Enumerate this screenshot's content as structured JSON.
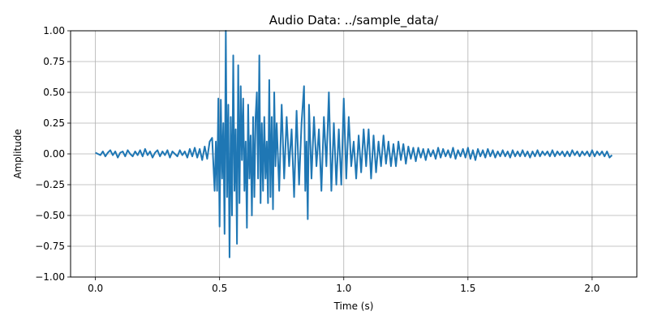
{
  "chart_data": {
    "type": "line",
    "title": "Audio Data: ../sample_data/",
    "xlabel": "Time (s)",
    "ylabel": "Amplitude",
    "xlim": [
      -0.1,
      2.18
    ],
    "ylim": [
      -1.0,
      1.0
    ],
    "xticks": [
      0.0,
      0.5,
      1.0,
      1.5,
      2.0
    ],
    "xtick_labels": [
      "0.0",
      "0.5",
      "1.0",
      "1.5",
      "2.0"
    ],
    "yticks": [
      -1.0,
      -0.75,
      -0.5,
      -0.25,
      0.0,
      0.25,
      0.5,
      0.75,
      1.0
    ],
    "ytick_labels": [
      "−1.00",
      "−0.75",
      "−0.50",
      "−0.25",
      "0.00",
      "0.25",
      "0.50",
      "0.75",
      "1.00"
    ],
    "grid": true,
    "series": [
      {
        "color": "#1f77b4",
        "points": [
          [
            0.0,
            0.01
          ],
          [
            0.01,
            0.0
          ],
          [
            0.02,
            -0.01
          ],
          [
            0.03,
            0.02
          ],
          [
            0.04,
            -0.02
          ],
          [
            0.05,
            0.01
          ],
          [
            0.06,
            0.03
          ],
          [
            0.07,
            -0.01
          ],
          [
            0.08,
            0.02
          ],
          [
            0.09,
            -0.03
          ],
          [
            0.1,
            0.01
          ],
          [
            0.11,
            0.02
          ],
          [
            0.12,
            -0.02
          ],
          [
            0.13,
            0.03
          ],
          [
            0.14,
            0.0
          ],
          [
            0.15,
            -0.02
          ],
          [
            0.16,
            0.02
          ],
          [
            0.17,
            -0.01
          ],
          [
            0.18,
            0.03
          ],
          [
            0.19,
            -0.02
          ],
          [
            0.2,
            0.04
          ],
          [
            0.21,
            -0.01
          ],
          [
            0.22,
            0.02
          ],
          [
            0.23,
            -0.03
          ],
          [
            0.24,
            0.01
          ],
          [
            0.25,
            0.03
          ],
          [
            0.26,
            -0.02
          ],
          [
            0.27,
            0.02
          ],
          [
            0.28,
            -0.01
          ],
          [
            0.29,
            0.03
          ],
          [
            0.3,
            -0.03
          ],
          [
            0.31,
            0.02
          ],
          [
            0.32,
            0.0
          ],
          [
            0.33,
            -0.02
          ],
          [
            0.34,
            0.03
          ],
          [
            0.35,
            -0.01
          ],
          [
            0.36,
            0.02
          ],
          [
            0.37,
            -0.03
          ],
          [
            0.38,
            0.04
          ],
          [
            0.39,
            -0.02
          ],
          [
            0.4,
            0.05
          ],
          [
            0.41,
            -0.03
          ],
          [
            0.42,
            0.04
          ],
          [
            0.43,
            -0.05
          ],
          [
            0.44,
            0.06
          ],
          [
            0.45,
            -0.04
          ],
          [
            0.46,
            0.1
          ],
          [
            0.47,
            0.13
          ],
          [
            0.48,
            -0.3
          ],
          [
            0.485,
            0.1
          ],
          [
            0.49,
            -0.3
          ],
          [
            0.495,
            0.45
          ],
          [
            0.5,
            -0.59
          ],
          [
            0.505,
            0.44
          ],
          [
            0.51,
            -0.2
          ],
          [
            0.515,
            0.25
          ],
          [
            0.52,
            -0.65
          ],
          [
            0.525,
            1.0
          ],
          [
            0.53,
            -0.35
          ],
          [
            0.535,
            0.4
          ],
          [
            0.54,
            -0.84
          ],
          [
            0.545,
            0.3
          ],
          [
            0.55,
            -0.5
          ],
          [
            0.555,
            0.8
          ],
          [
            0.56,
            -0.3
          ],
          [
            0.565,
            0.2
          ],
          [
            0.57,
            -0.73
          ],
          [
            0.575,
            0.72
          ],
          [
            0.58,
            -0.4
          ],
          [
            0.585,
            0.55
          ],
          [
            0.59,
            -0.05
          ],
          [
            0.595,
            0.45
          ],
          [
            0.6,
            -0.3
          ],
          [
            0.605,
            0.1
          ],
          [
            0.61,
            -0.6
          ],
          [
            0.615,
            0.4
          ],
          [
            0.62,
            -0.2
          ],
          [
            0.625,
            0.15
          ],
          [
            0.63,
            -0.5
          ],
          [
            0.635,
            0.3
          ],
          [
            0.64,
            -0.35
          ],
          [
            0.645,
            0.3
          ],
          [
            0.65,
            0.5
          ],
          [
            0.655,
            -0.2
          ],
          [
            0.66,
            0.8
          ],
          [
            0.665,
            -0.4
          ],
          [
            0.67,
            0.25
          ],
          [
            0.675,
            -0.3
          ],
          [
            0.68,
            0.3
          ],
          [
            0.685,
            -0.2
          ],
          [
            0.69,
            0.1
          ],
          [
            0.695,
            -0.4
          ],
          [
            0.7,
            0.6
          ],
          [
            0.705,
            -0.35
          ],
          [
            0.71,
            0.3
          ],
          [
            0.715,
            -0.45
          ],
          [
            0.72,
            0.5
          ],
          [
            0.725,
            -0.1
          ],
          [
            0.73,
            0.25
          ],
          [
            0.74,
            -0.3
          ],
          [
            0.75,
            0.4
          ],
          [
            0.76,
            -0.2
          ],
          [
            0.77,
            0.3
          ],
          [
            0.78,
            -0.1
          ],
          [
            0.79,
            0.2
          ],
          [
            0.8,
            -0.35
          ],
          [
            0.81,
            0.35
          ],
          [
            0.82,
            -0.25
          ],
          [
            0.83,
            0.25
          ],
          [
            0.84,
            0.55
          ],
          [
            0.845,
            -0.3
          ],
          [
            0.85,
            0.1
          ],
          [
            0.855,
            -0.53
          ],
          [
            0.86,
            0.4
          ],
          [
            0.87,
            -0.2
          ],
          [
            0.88,
            0.3
          ],
          [
            0.89,
            -0.1
          ],
          [
            0.9,
            0.2
          ],
          [
            0.91,
            -0.3
          ],
          [
            0.92,
            0.3
          ],
          [
            0.93,
            -0.1
          ],
          [
            0.94,
            0.5
          ],
          [
            0.95,
            -0.3
          ],
          [
            0.96,
            0.25
          ],
          [
            0.97,
            -0.25
          ],
          [
            0.98,
            0.2
          ],
          [
            0.99,
            -0.25
          ],
          [
            1.0,
            0.45
          ],
          [
            1.01,
            -0.2
          ],
          [
            1.02,
            0.3
          ],
          [
            1.03,
            -0.1
          ],
          [
            1.04,
            0.1
          ],
          [
            1.05,
            -0.2
          ],
          [
            1.06,
            0.15
          ],
          [
            1.07,
            -0.15
          ],
          [
            1.08,
            0.2
          ],
          [
            1.09,
            -0.1
          ],
          [
            1.1,
            0.2
          ],
          [
            1.11,
            -0.2
          ],
          [
            1.12,
            0.15
          ],
          [
            1.13,
            -0.15
          ],
          [
            1.14,
            0.1
          ],
          [
            1.15,
            -0.1
          ],
          [
            1.16,
            0.15
          ],
          [
            1.17,
            -0.08
          ],
          [
            1.18,
            0.1
          ],
          [
            1.19,
            -0.1
          ],
          [
            1.2,
            0.08
          ],
          [
            1.21,
            -0.1
          ],
          [
            1.22,
            0.1
          ],
          [
            1.23,
            -0.05
          ],
          [
            1.24,
            0.08
          ],
          [
            1.25,
            -0.08
          ],
          [
            1.26,
            0.06
          ],
          [
            1.27,
            -0.04
          ],
          [
            1.28,
            0.05
          ],
          [
            1.29,
            -0.06
          ],
          [
            1.3,
            0.05
          ],
          [
            1.31,
            -0.03
          ],
          [
            1.32,
            0.04
          ],
          [
            1.33,
            -0.05
          ],
          [
            1.34,
            0.04
          ],
          [
            1.35,
            -0.02
          ],
          [
            1.36,
            0.03
          ],
          [
            1.37,
            -0.04
          ],
          [
            1.38,
            0.05
          ],
          [
            1.39,
            -0.03
          ],
          [
            1.4,
            0.04
          ],
          [
            1.41,
            -0.02
          ],
          [
            1.42,
            0.03
          ],
          [
            1.43,
            -0.03
          ],
          [
            1.44,
            0.05
          ],
          [
            1.45,
            -0.04
          ],
          [
            1.46,
            0.03
          ],
          [
            1.47,
            -0.02
          ],
          [
            1.48,
            0.04
          ],
          [
            1.49,
            -0.03
          ],
          [
            1.5,
            0.05
          ],
          [
            1.51,
            -0.04
          ],
          [
            1.52,
            0.03
          ],
          [
            1.53,
            -0.05
          ],
          [
            1.54,
            0.04
          ],
          [
            1.55,
            -0.02
          ],
          [
            1.56,
            0.03
          ],
          [
            1.57,
            -0.03
          ],
          [
            1.58,
            0.04
          ],
          [
            1.59,
            -0.02
          ],
          [
            1.6,
            0.03
          ],
          [
            1.61,
            -0.03
          ],
          [
            1.62,
            0.02
          ],
          [
            1.63,
            -0.02
          ],
          [
            1.64,
            0.03
          ],
          [
            1.65,
            -0.02
          ],
          [
            1.66,
            0.02
          ],
          [
            1.67,
            -0.03
          ],
          [
            1.68,
            0.03
          ],
          [
            1.69,
            -0.02
          ],
          [
            1.7,
            0.02
          ],
          [
            1.71,
            -0.02
          ],
          [
            1.72,
            0.03
          ],
          [
            1.73,
            -0.02
          ],
          [
            1.74,
            0.02
          ],
          [
            1.75,
            -0.03
          ],
          [
            1.76,
            0.02
          ],
          [
            1.77,
            -0.02
          ],
          [
            1.78,
            0.03
          ],
          [
            1.79,
            -0.02
          ],
          [
            1.8,
            0.02
          ],
          [
            1.81,
            -0.01
          ],
          [
            1.82,
            0.02
          ],
          [
            1.83,
            -0.02
          ],
          [
            1.84,
            0.03
          ],
          [
            1.85,
            -0.02
          ],
          [
            1.86,
            0.02
          ],
          [
            1.87,
            -0.01
          ],
          [
            1.88,
            0.02
          ],
          [
            1.89,
            -0.02
          ],
          [
            1.9,
            0.02
          ],
          [
            1.91,
            -0.02
          ],
          [
            1.92,
            0.03
          ],
          [
            1.93,
            -0.01
          ],
          [
            1.94,
            0.02
          ],
          [
            1.95,
            -0.02
          ],
          [
            1.96,
            0.02
          ],
          [
            1.97,
            -0.01
          ],
          [
            1.98,
            0.02
          ],
          [
            1.99,
            -0.02
          ],
          [
            2.0,
            0.03
          ],
          [
            2.01,
            -0.02
          ],
          [
            2.02,
            0.02
          ],
          [
            2.03,
            -0.01
          ],
          [
            2.04,
            0.02
          ],
          [
            2.05,
            -0.02
          ],
          [
            2.06,
            0.02
          ],
          [
            2.07,
            -0.03
          ],
          [
            2.08,
            -0.01
          ]
        ]
      }
    ]
  }
}
